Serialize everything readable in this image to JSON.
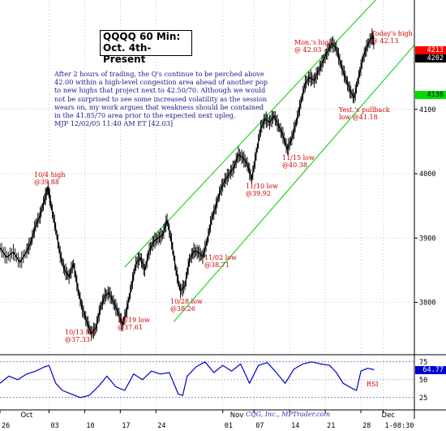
{
  "title_lines": [
    "QQQQ 60 Min:",
    "Oct. 4th-Present"
  ],
  "commentary": [
    "After 2 hours of trading, the Q's continue to be perched above",
    "42.00 within a high-level congestion area ahead of another pop",
    "to new highs that project next to 42.50/70. Although we would",
    "not be surprised to see some increased volatility as the session",
    "wears on, my work argues that weakness should be contained",
    "in the 41.85/70 area prior to the expected next upleg.",
    "MJP  12/02/05 11:40 AM  ET  [42.03]"
  ],
  "annotations": {
    "oct4_high": [
      "10/4 high",
      "@39.88"
    ],
    "oct13_low": [
      "10/13 low",
      "@37.33"
    ],
    "oct19_low": [
      "10/19 low",
      "@37.61"
    ],
    "oct28_low": [
      "10/28 low",
      "@38.26"
    ],
    "nov02_low": [
      "11/02 low",
      "@38.71"
    ],
    "nov10_low": [
      "11/10 low",
      "@39.92"
    ],
    "nov15_low": [
      "11/15 low",
      "@40.38"
    ],
    "mon_high": [
      "Mon.'s high",
      "@ 42.03"
    ],
    "yest_pullback": [
      "Yest.'s pullback",
      "low @41.18"
    ],
    "todays_high": [
      "Today's high",
      "@ 42.13"
    ]
  },
  "price_tags": {
    "upper": "4213",
    "current": "4202",
    "lower": "4136",
    "rsi": "64.77"
  },
  "rsi_label": "RSI",
  "credit": "CQG, Inc., MPTrader.com",
  "chart_data": {
    "type": "line",
    "price_axis": {
      "ticks": [
        3800,
        3900,
        4000,
        4100
      ],
      "range": [
        3720,
        4270
      ],
      "scale_note": "prices shown x100"
    },
    "rsi_axis": {
      "ticks": [
        25,
        50,
        75
      ],
      "range": [
        10,
        85
      ]
    },
    "x_axis": {
      "month_labels": [
        "Oct",
        "Nov",
        "Dec"
      ],
      "day_labels": [
        "26",
        "03",
        "10",
        "17",
        "24",
        "01",
        "07",
        "14",
        "21",
        "28",
        "1-08:30"
      ],
      "time_range": [
        0,
        93
      ]
    },
    "price_series": [
      {
        "t": 0,
        "v": 3885
      },
      {
        "t": 1.5,
        "v": 3870
      },
      {
        "t": 3,
        "v": 3878
      },
      {
        "t": 4.5,
        "v": 3862
      },
      {
        "t": 6,
        "v": 3880
      },
      {
        "t": 7,
        "v": 3895
      },
      {
        "t": 8,
        "v": 3920
      },
      {
        "t": 9,
        "v": 3935
      },
      {
        "t": 10,
        "v": 3960
      },
      {
        "t": 10.8,
        "v": 3978
      },
      {
        "t": 11.5,
        "v": 3950
      },
      {
        "t": 12.5,
        "v": 3915
      },
      {
        "t": 13.5,
        "v": 3875
      },
      {
        "t": 14.5,
        "v": 3850
      },
      {
        "t": 15.5,
        "v": 3840
      },
      {
        "t": 16.5,
        "v": 3860
      },
      {
        "t": 17.5,
        "v": 3820
      },
      {
        "t": 18.5,
        "v": 3790
      },
      {
        "t": 19.5,
        "v": 3770
      },
      {
        "t": 20.5,
        "v": 3752
      },
      {
        "t": 21.5,
        "v": 3760
      },
      {
        "t": 22.5,
        "v": 3790
      },
      {
        "t": 23.5,
        "v": 3810
      },
      {
        "t": 24.5,
        "v": 3815
      },
      {
        "t": 25.5,
        "v": 3800
      },
      {
        "t": 26.5,
        "v": 3785
      },
      {
        "t": 27.5,
        "v": 3765
      },
      {
        "t": 28.5,
        "v": 3790
      },
      {
        "t": 29.5,
        "v": 3825
      },
      {
        "t": 30.5,
        "v": 3860
      },
      {
        "t": 31.5,
        "v": 3870
      },
      {
        "t": 32.5,
        "v": 3850
      },
      {
        "t": 33.5,
        "v": 3880
      },
      {
        "t": 34.5,
        "v": 3895
      },
      {
        "t": 35.5,
        "v": 3900
      },
      {
        "t": 36.5,
        "v": 3905
      },
      {
        "t": 37.5,
        "v": 3928
      },
      {
        "t": 38.5,
        "v": 3895
      },
      {
        "t": 39.5,
        "v": 3850
      },
      {
        "t": 40.5,
        "v": 3818
      },
      {
        "t": 41.5,
        "v": 3826
      },
      {
        "t": 42.5,
        "v": 3865
      },
      {
        "t": 43.5,
        "v": 3880
      },
      {
        "t": 44.5,
        "v": 3878
      },
      {
        "t": 45.5,
        "v": 3871
      },
      {
        "t": 46.5,
        "v": 3895
      },
      {
        "t": 47.5,
        "v": 3930
      },
      {
        "t": 48.5,
        "v": 3950
      },
      {
        "t": 49.5,
        "v": 3975
      },
      {
        "t": 50.5,
        "v": 3990
      },
      {
        "t": 51.5,
        "v": 4000
      },
      {
        "t": 52.5,
        "v": 4010
      },
      {
        "t": 53.5,
        "v": 4030
      },
      {
        "t": 54.5,
        "v": 4025
      },
      {
        "t": 55.5,
        "v": 4015
      },
      {
        "t": 56.5,
        "v": 3992
      },
      {
        "t": 57.5,
        "v": 4030
      },
      {
        "t": 58.5,
        "v": 4070
      },
      {
        "t": 59.5,
        "v": 4085
      },
      {
        "t": 60.5,
        "v": 4080
      },
      {
        "t": 61.5,
        "v": 4090
      },
      {
        "t": 62.5,
        "v": 4075
      },
      {
        "t": 63.5,
        "v": 4060
      },
      {
        "t": 64.5,
        "v": 4038
      },
      {
        "t": 65.5,
        "v": 4055
      },
      {
        "t": 66.5,
        "v": 4080
      },
      {
        "t": 67.5,
        "v": 4110
      },
      {
        "t": 68.5,
        "v": 4140
      },
      {
        "t": 69.5,
        "v": 4150
      },
      {
        "t": 70.5,
        "v": 4145
      },
      {
        "t": 71.5,
        "v": 4160
      },
      {
        "t": 72.5,
        "v": 4175
      },
      {
        "t": 73.5,
        "v": 4190
      },
      {
        "t": 74.5,
        "v": 4203
      },
      {
        "t": 75.5,
        "v": 4195
      },
      {
        "t": 76.5,
        "v": 4170
      },
      {
        "t": 77.5,
        "v": 4150
      },
      {
        "t": 78.5,
        "v": 4130
      },
      {
        "t": 79.5,
        "v": 4118
      },
      {
        "t": 80.5,
        "v": 4150
      },
      {
        "t": 81.5,
        "v": 4180
      },
      {
        "t": 82.5,
        "v": 4200
      },
      {
        "t": 83.5,
        "v": 4213
      },
      {
        "t": 84,
        "v": 4202
      }
    ],
    "channel_lines": [
      {
        "name": "upper",
        "start": {
          "t": 28,
          "v": 3855
        },
        "end": {
          "t": 87,
          "v": 4290
        }
      },
      {
        "name": "lower",
        "start": {
          "t": 39,
          "v": 3770
        },
        "end": {
          "t": 93,
          "v": 4200
        }
      }
    ],
    "rsi_series": [
      {
        "t": 0,
        "v": 45
      },
      {
        "t": 2,
        "v": 55
      },
      {
        "t": 4,
        "v": 50
      },
      {
        "t": 6,
        "v": 58
      },
      {
        "t": 8,
        "v": 62
      },
      {
        "t": 10,
        "v": 68
      },
      {
        "t": 11,
        "v": 70
      },
      {
        "t": 12.5,
        "v": 45
      },
      {
        "t": 14,
        "v": 35
      },
      {
        "t": 16,
        "v": 30
      },
      {
        "t": 18,
        "v": 25
      },
      {
        "t": 20,
        "v": 28
      },
      {
        "t": 22,
        "v": 40
      },
      {
        "t": 24,
        "v": 55
      },
      {
        "t": 26,
        "v": 40
      },
      {
        "t": 28,
        "v": 35
      },
      {
        "t": 30,
        "v": 58
      },
      {
        "t": 32,
        "v": 50
      },
      {
        "t": 34,
        "v": 62
      },
      {
        "t": 36,
        "v": 58
      },
      {
        "t": 38,
        "v": 60
      },
      {
        "t": 40,
        "v": 30
      },
      {
        "t": 41,
        "v": 28
      },
      {
        "t": 42,
        "v": 55
      },
      {
        "t": 44,
        "v": 68
      },
      {
        "t": 46,
        "v": 75
      },
      {
        "t": 48,
        "v": 60
      },
      {
        "t": 50,
        "v": 70
      },
      {
        "t": 52,
        "v": 62
      },
      {
        "t": 54,
        "v": 72
      },
      {
        "t": 56,
        "v": 45
      },
      {
        "t": 58,
        "v": 70
      },
      {
        "t": 60,
        "v": 74
      },
      {
        "t": 62,
        "v": 60
      },
      {
        "t": 64,
        "v": 45
      },
      {
        "t": 66,
        "v": 65
      },
      {
        "t": 68,
        "v": 72
      },
      {
        "t": 70,
        "v": 75
      },
      {
        "t": 72,
        "v": 72
      },
      {
        "t": 74,
        "v": 70
      },
      {
        "t": 75.5,
        "v": 60
      },
      {
        "t": 77,
        "v": 45
      },
      {
        "t": 79,
        "v": 38
      },
      {
        "t": 80,
        "v": 35
      },
      {
        "t": 81,
        "v": 62
      },
      {
        "t": 82.5,
        "v": 66
      },
      {
        "t": 84,
        "v": 64
      }
    ]
  },
  "colors": {
    "price": "#000000",
    "channel": "#00cc00",
    "rsi": "#0000cc",
    "grid": "#999999",
    "tag_upper_bg": "#ff0000",
    "tag_current_bg": "#000000",
    "tag_lower_bg": "#00dd00",
    "tag_rsi_bg": "#0000cc"
  }
}
